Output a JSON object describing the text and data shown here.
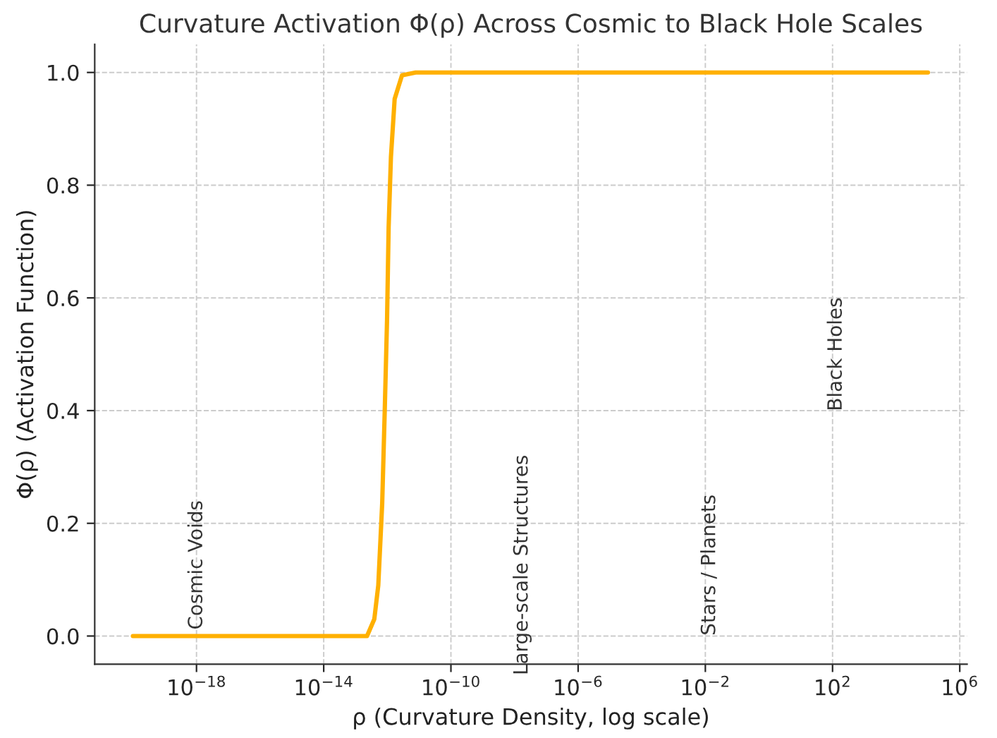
{
  "chart_data": {
    "type": "line",
    "title": "Curvature Activation Φ(ρ) Across Cosmic to Black Hole Scales",
    "xlabel": "ρ (Curvature Density, log scale)",
    "ylabel": "Φ(ρ) (Activation Function)",
    "log": "x",
    "xlim": [
      6.3e-22,
      1700000.0
    ],
    "ylim": [
      -0.05,
      1.05
    ],
    "xticks": [
      {
        "value": 1e-18,
        "label": "10$^{−18}$"
      },
      {
        "value": 1e-14,
        "label": "10$^{−14}$"
      },
      {
        "value": 1e-10,
        "label": "10$^{−10}$"
      },
      {
        "value": 1e-06,
        "label": "10$^{−6}$"
      },
      {
        "value": 0.01,
        "label": "10$^{−2}$"
      },
      {
        "value": 100,
        "label": "10$^{2}$"
      },
      {
        "value": 1000000.0,
        "label": "10$^{6}$"
      }
    ],
    "yticks": [
      {
        "value": 0,
        "label": "0.0"
      },
      {
        "value": 0.2,
        "label": "0.2"
      },
      {
        "value": 0.4,
        "label": "0.4"
      },
      {
        "value": 0.6,
        "label": "0.6"
      },
      {
        "value": 0.8,
        "label": "0.8"
      },
      {
        "value": 1,
        "label": "1.0"
      }
    ],
    "grid": true,
    "legend": false,
    "line_style": "solid",
    "marker": "none",
    "series": [
      {
        "color": "#ffb000",
        "x": [
          1e-20,
          2.3e-13,
          3.9e-13,
          5.2e-13,
          6.9e-13,
          8.3e-13,
          9.8e-13,
          1.1e-12,
          1.3e-12,
          1.7e-12,
          2.9e-12,
          7.8e-12,
          100000.0
        ],
        "values": [
          0,
          0,
          0.03,
          0.09,
          0.235,
          0.4,
          0.56,
          0.725,
          0.85,
          0.953,
          0.995,
          1,
          1
        ]
      }
    ],
    "annotations": [
      "Cosmic Voids",
      "Large-scale Structures",
      "Stars / Planets",
      "Black Holes"
    ]
  }
}
